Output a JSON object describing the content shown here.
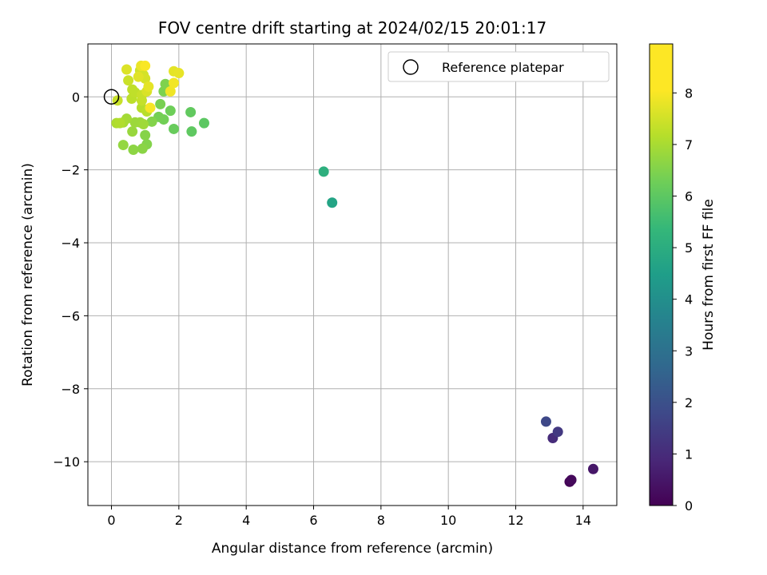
{
  "chart_data": {
    "type": "scatter",
    "title": "FOV centre drift starting at 2024/02/15 20:01:17",
    "xlabel": "Angular distance from reference (arcmin)",
    "ylabel": "Rotation from reference (arcmin)",
    "xlim": [
      -0.7,
      15.0
    ],
    "ylim": [
      -11.2,
      1.45
    ],
    "xticks": [
      0,
      2,
      4,
      6,
      8,
      10,
      12,
      14
    ],
    "xtick_labels": [
      "0",
      "2",
      "4",
      "6",
      "8",
      "10",
      "12",
      "14"
    ],
    "yticks": [
      0,
      -2,
      -4,
      -6,
      -8,
      -10
    ],
    "ytick_labels": [
      "0",
      "−2",
      "−4",
      "−6",
      "−8",
      "−10"
    ],
    "grid": true,
    "legend": {
      "position": "top-right",
      "entries": [
        "Reference platepar"
      ]
    },
    "reference": {
      "x": 0,
      "y": 0,
      "label": "Reference platepar"
    },
    "colorbar": {
      "label": "Hours from first FF file",
      "range": [
        0,
        8.95
      ],
      "ticks": [
        0,
        1,
        2,
        3,
        4,
        5,
        6,
        7,
        8
      ],
      "tick_labels": [
        "0",
        "1",
        "2",
        "3",
        "4",
        "5",
        "6",
        "7",
        "8"
      ],
      "colormap": "viridis"
    },
    "points": [
      {
        "x": 13.6,
        "y": -10.55,
        "hours": 0.05
      },
      {
        "x": 13.65,
        "y": -10.5,
        "hours": 0.2
      },
      {
        "x": 14.3,
        "y": -10.2,
        "hours": 0.55
      },
      {
        "x": 13.1,
        "y": -9.35,
        "hours": 1.1
      },
      {
        "x": 13.25,
        "y": -9.18,
        "hours": 1.5
      },
      {
        "x": 12.9,
        "y": -8.9,
        "hours": 1.95
      },
      {
        "x": 6.55,
        "y": -2.9,
        "hours": 5.2
      },
      {
        "x": 6.3,
        "y": -2.05,
        "hours": 5.65
      },
      {
        "x": 2.75,
        "y": -0.72,
        "hours": 6.65
      },
      {
        "x": 2.38,
        "y": -0.95,
        "hours": 6.7
      },
      {
        "x": 2.35,
        "y": -0.42,
        "hours": 6.75
      },
      {
        "x": 1.85,
        "y": -0.88,
        "hours": 6.85
      },
      {
        "x": 1.75,
        "y": -0.38,
        "hours": 6.95
      },
      {
        "x": 1.55,
        "y": -0.62,
        "hours": 7.0
      },
      {
        "x": 1.4,
        "y": -0.55,
        "hours": 7.05
      },
      {
        "x": 1.45,
        "y": -0.2,
        "hours": 7.1
      },
      {
        "x": 1.55,
        "y": 0.15,
        "hours": 7.15
      },
      {
        "x": 1.6,
        "y": 0.35,
        "hours": 7.2
      },
      {
        "x": 1.2,
        "y": -0.68,
        "hours": 7.25
      },
      {
        "x": 1.05,
        "y": -1.3,
        "hours": 7.25
      },
      {
        "x": 1.0,
        "y": -1.05,
        "hours": 7.3
      },
      {
        "x": 0.92,
        "y": -1.42,
        "hours": 7.35
      },
      {
        "x": 0.65,
        "y": -1.45,
        "hours": 7.4
      },
      {
        "x": 0.35,
        "y": -1.32,
        "hours": 7.5
      },
      {
        "x": 0.62,
        "y": -0.95,
        "hours": 7.55
      },
      {
        "x": 0.85,
        "y": -0.7,
        "hours": 7.6
      },
      {
        "x": 0.7,
        "y": -0.7,
        "hours": 7.6
      },
      {
        "x": 0.95,
        "y": -0.75,
        "hours": 7.65
      },
      {
        "x": 0.45,
        "y": -0.6,
        "hours": 7.7
      },
      {
        "x": 0.35,
        "y": -0.7,
        "hours": 7.75
      },
      {
        "x": 0.15,
        "y": -0.72,
        "hours": 7.85
      },
      {
        "x": 0.25,
        "y": -0.72,
        "hours": 7.9
      },
      {
        "x": 0.9,
        "y": -0.3,
        "hours": 7.95
      },
      {
        "x": 1.05,
        "y": -0.4,
        "hours": 8.0
      },
      {
        "x": 0.6,
        "y": -0.05,
        "hours": 8.05
      },
      {
        "x": 0.7,
        "y": 0.12,
        "hours": 8.1
      },
      {
        "x": 0.62,
        "y": 0.2,
        "hours": 8.1
      },
      {
        "x": 0.9,
        "y": -0.1,
        "hours": 8.15
      },
      {
        "x": 0.9,
        "y": 0.05,
        "hours": 8.2
      },
      {
        "x": 0.18,
        "y": -0.1,
        "hours": 8.2
      },
      {
        "x": 0.5,
        "y": 0.45,
        "hours": 8.25
      },
      {
        "x": 0.85,
        "y": 0.72,
        "hours": 8.3
      },
      {
        "x": 0.95,
        "y": 0.6,
        "hours": 8.35
      },
      {
        "x": 1.0,
        "y": 0.5,
        "hours": 8.4
      },
      {
        "x": 1.05,
        "y": 0.15,
        "hours": 8.45
      },
      {
        "x": 0.45,
        "y": 0.75,
        "hours": 8.5
      },
      {
        "x": 0.8,
        "y": 0.55,
        "hours": 8.55
      },
      {
        "x": 1.1,
        "y": 0.28,
        "hours": 8.6
      },
      {
        "x": 1.85,
        "y": 0.7,
        "hours": 8.6
      },
      {
        "x": 2.0,
        "y": 0.65,
        "hours": 8.65
      },
      {
        "x": 0.88,
        "y": 0.85,
        "hours": 8.7
      },
      {
        "x": 1.75,
        "y": 0.15,
        "hours": 8.75
      },
      {
        "x": 1.85,
        "y": 0.38,
        "hours": 8.8
      },
      {
        "x": 1.15,
        "y": -0.3,
        "hours": 8.85
      },
      {
        "x": 1.0,
        "y": 0.85,
        "hours": 8.9
      }
    ]
  }
}
